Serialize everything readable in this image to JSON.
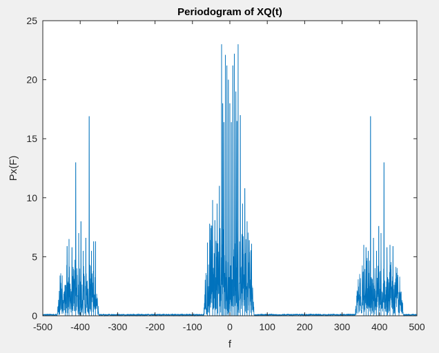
{
  "chart_data": {
    "type": "line",
    "title": "Periodogram of XQ(t)",
    "xlabel": "f",
    "ylabel": "Px(F)",
    "xlim": [
      -500,
      500
    ],
    "ylim": [
      0,
      25
    ],
    "xticks": [
      "-500",
      "-400",
      "-300",
      "-200",
      "-100",
      "0",
      "100",
      "200",
      "300",
      "400",
      "500"
    ],
    "yticks": [
      "0",
      "5",
      "10",
      "15",
      "20",
      "25"
    ],
    "grid": false,
    "legend": "none",
    "series": [
      {
        "color": "#0072bd",
        "bands": [
          {
            "from": -462,
            "to": -350,
            "base": 1.5,
            "amp": 3.2
          },
          {
            "from": -70,
            "to": 65,
            "base": 2.5,
            "amp": 5.5
          },
          {
            "from": 335,
            "to": 465,
            "base": 1.5,
            "amp": 3.2
          }
        ],
        "peaks": [
          {
            "x": -440,
            "y": 2.6
          },
          {
            "x": -435,
            "y": 5.9
          },
          {
            "x": -430,
            "y": 6.5
          },
          {
            "x": -422,
            "y": 5.8
          },
          {
            "x": -412,
            "y": 13.0
          },
          {
            "x": -404,
            "y": 7.0
          },
          {
            "x": -398,
            "y": 8.0
          },
          {
            "x": -392,
            "y": 5.5
          },
          {
            "x": -385,
            "y": 6.6
          },
          {
            "x": -376,
            "y": 16.9
          },
          {
            "x": -370,
            "y": 5.5
          },
          {
            "x": -364,
            "y": 6.3
          },
          {
            "x": -359,
            "y": 6.3
          },
          {
            "x": -60,
            "y": 6.2
          },
          {
            "x": -54,
            "y": 7.8
          },
          {
            "x": -46,
            "y": 9.8
          },
          {
            "x": -40,
            "y": 8.1
          },
          {
            "x": -34,
            "y": 9.5
          },
          {
            "x": -28,
            "y": 11.0
          },
          {
            "x": -22,
            "y": 23.0
          },
          {
            "x": -19,
            "y": 18.0
          },
          {
            "x": -16,
            "y": 16.4
          },
          {
            "x": -12,
            "y": 22.1
          },
          {
            "x": -8,
            "y": 21.2
          },
          {
            "x": -4,
            "y": 20.0
          },
          {
            "x": 0,
            "y": 18.0
          },
          {
            "x": 4,
            "y": 16.4
          },
          {
            "x": 8,
            "y": 21.2
          },
          {
            "x": 12,
            "y": 22.2
          },
          {
            "x": 16,
            "y": 19.0
          },
          {
            "x": 19,
            "y": 16.5
          },
          {
            "x": 22,
            "y": 23.0
          },
          {
            "x": 28,
            "y": 17.0
          },
          {
            "x": 34,
            "y": 9.5
          },
          {
            "x": 40,
            "y": 10.8
          },
          {
            "x": 46,
            "y": 8.0
          },
          {
            "x": 52,
            "y": 6.4
          },
          {
            "x": 58,
            "y": 6.1
          },
          {
            "x": 358,
            "y": 6.0
          },
          {
            "x": 364,
            "y": 5.8
          },
          {
            "x": 370,
            "y": 5.5
          },
          {
            "x": 376,
            "y": 16.9
          },
          {
            "x": 384,
            "y": 6.6
          },
          {
            "x": 392,
            "y": 5.5
          },
          {
            "x": 398,
            "y": 7.6
          },
          {
            "x": 404,
            "y": 7.0
          },
          {
            "x": 412,
            "y": 13.0
          },
          {
            "x": 420,
            "y": 5.8
          },
          {
            "x": 428,
            "y": 6.0
          },
          {
            "x": 436,
            "y": 5.9
          },
          {
            "x": 442,
            "y": 2.6
          },
          {
            "x": 452,
            "y": 2.0
          }
        ]
      }
    ]
  }
}
